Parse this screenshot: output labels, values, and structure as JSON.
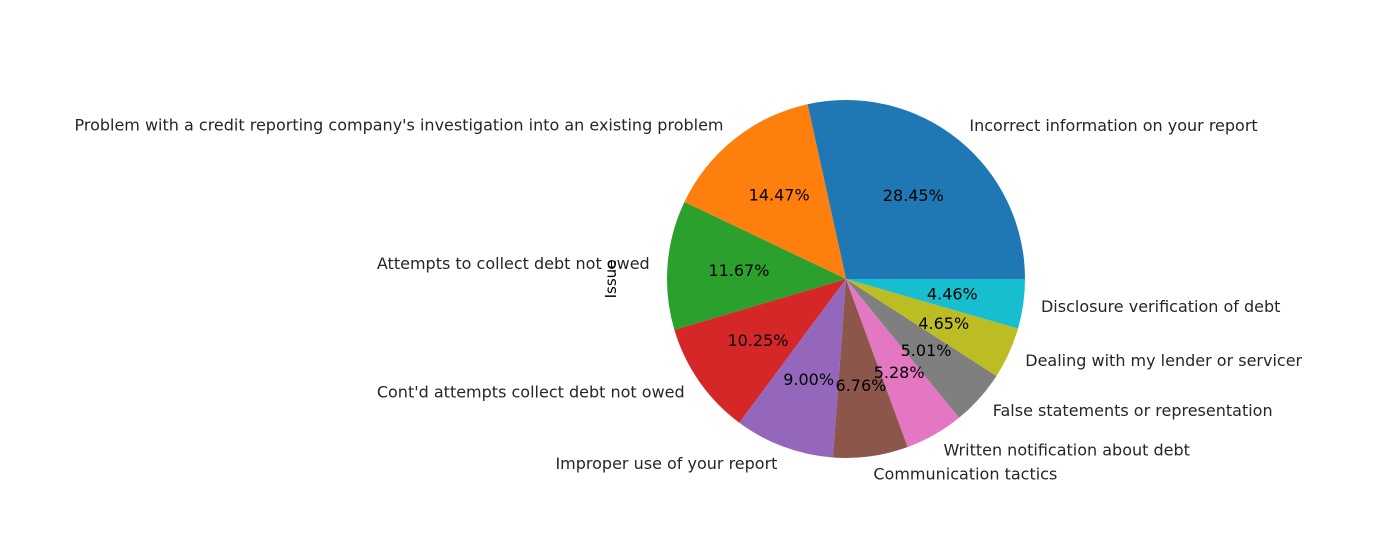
{
  "chart_data": {
    "type": "pie",
    "ylabel": "Issue",
    "start_angle_deg": 0,
    "direction": "counterclockwise",
    "slices": [
      {
        "label": "Incorrect information on your report",
        "value": 28.45,
        "pct_label": "28.45%",
        "color": "#1f77b4"
      },
      {
        "label": "Problem with a credit reporting company's investigation into an existing problem",
        "value": 14.47,
        "pct_label": "14.47%",
        "color": "#ff7f0e"
      },
      {
        "label": "Attempts to collect debt not owed",
        "value": 11.67,
        "pct_label": "11.67%",
        "color": "#2ca02c"
      },
      {
        "label": "Cont'd attempts collect debt not owed",
        "value": 10.25,
        "pct_label": "10.25%",
        "color": "#d62728"
      },
      {
        "label": "Improper use of your report",
        "value": 9.0,
        "pct_label": "9.00%",
        "color": "#9467bd"
      },
      {
        "label": "Communication tactics",
        "value": 6.76,
        "pct_label": "6.76%",
        "color": "#8c564b"
      },
      {
        "label": "Written notification about debt",
        "value": 5.28,
        "pct_label": "5.28%",
        "color": "#e377c2"
      },
      {
        "label": "False statements or representation",
        "value": 5.01,
        "pct_label": "5.01%",
        "color": "#7f7f7f"
      },
      {
        "label": "Dealing with my lender or servicer",
        "value": 4.65,
        "pct_label": "4.65%",
        "color": "#bcbd22"
      },
      {
        "label": "Disclosure verification of debt",
        "value": 4.46,
        "pct_label": "4.46%",
        "color": "#17becf"
      }
    ]
  }
}
